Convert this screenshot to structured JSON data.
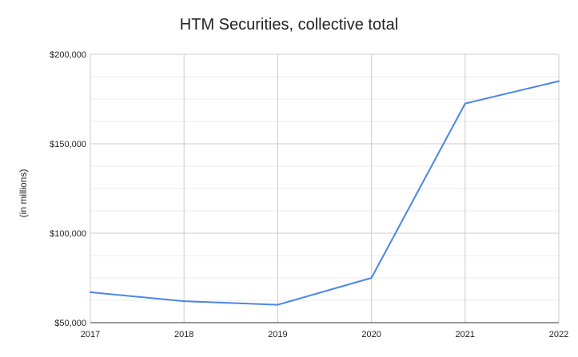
{
  "chart_data": {
    "type": "line",
    "title": "HTM Securities, collective total",
    "xlabel": "",
    "ylabel": "(in millions)",
    "x": [
      "2017",
      "2018",
      "2019",
      "2020",
      "2021",
      "2022"
    ],
    "series": [
      {
        "values": [
          67000,
          62000,
          60000,
          75000,
          172500,
          185000
        ]
      }
    ],
    "ylim": [
      50000,
      200000
    ],
    "y_ticks": [
      50000,
      100000,
      150000,
      200000
    ],
    "y_tick_labels": [
      "$50,000",
      "$100,000",
      "$150,000",
      "$200,000"
    ],
    "grid": true,
    "legend": "none",
    "line_color": "#4a86e8"
  }
}
